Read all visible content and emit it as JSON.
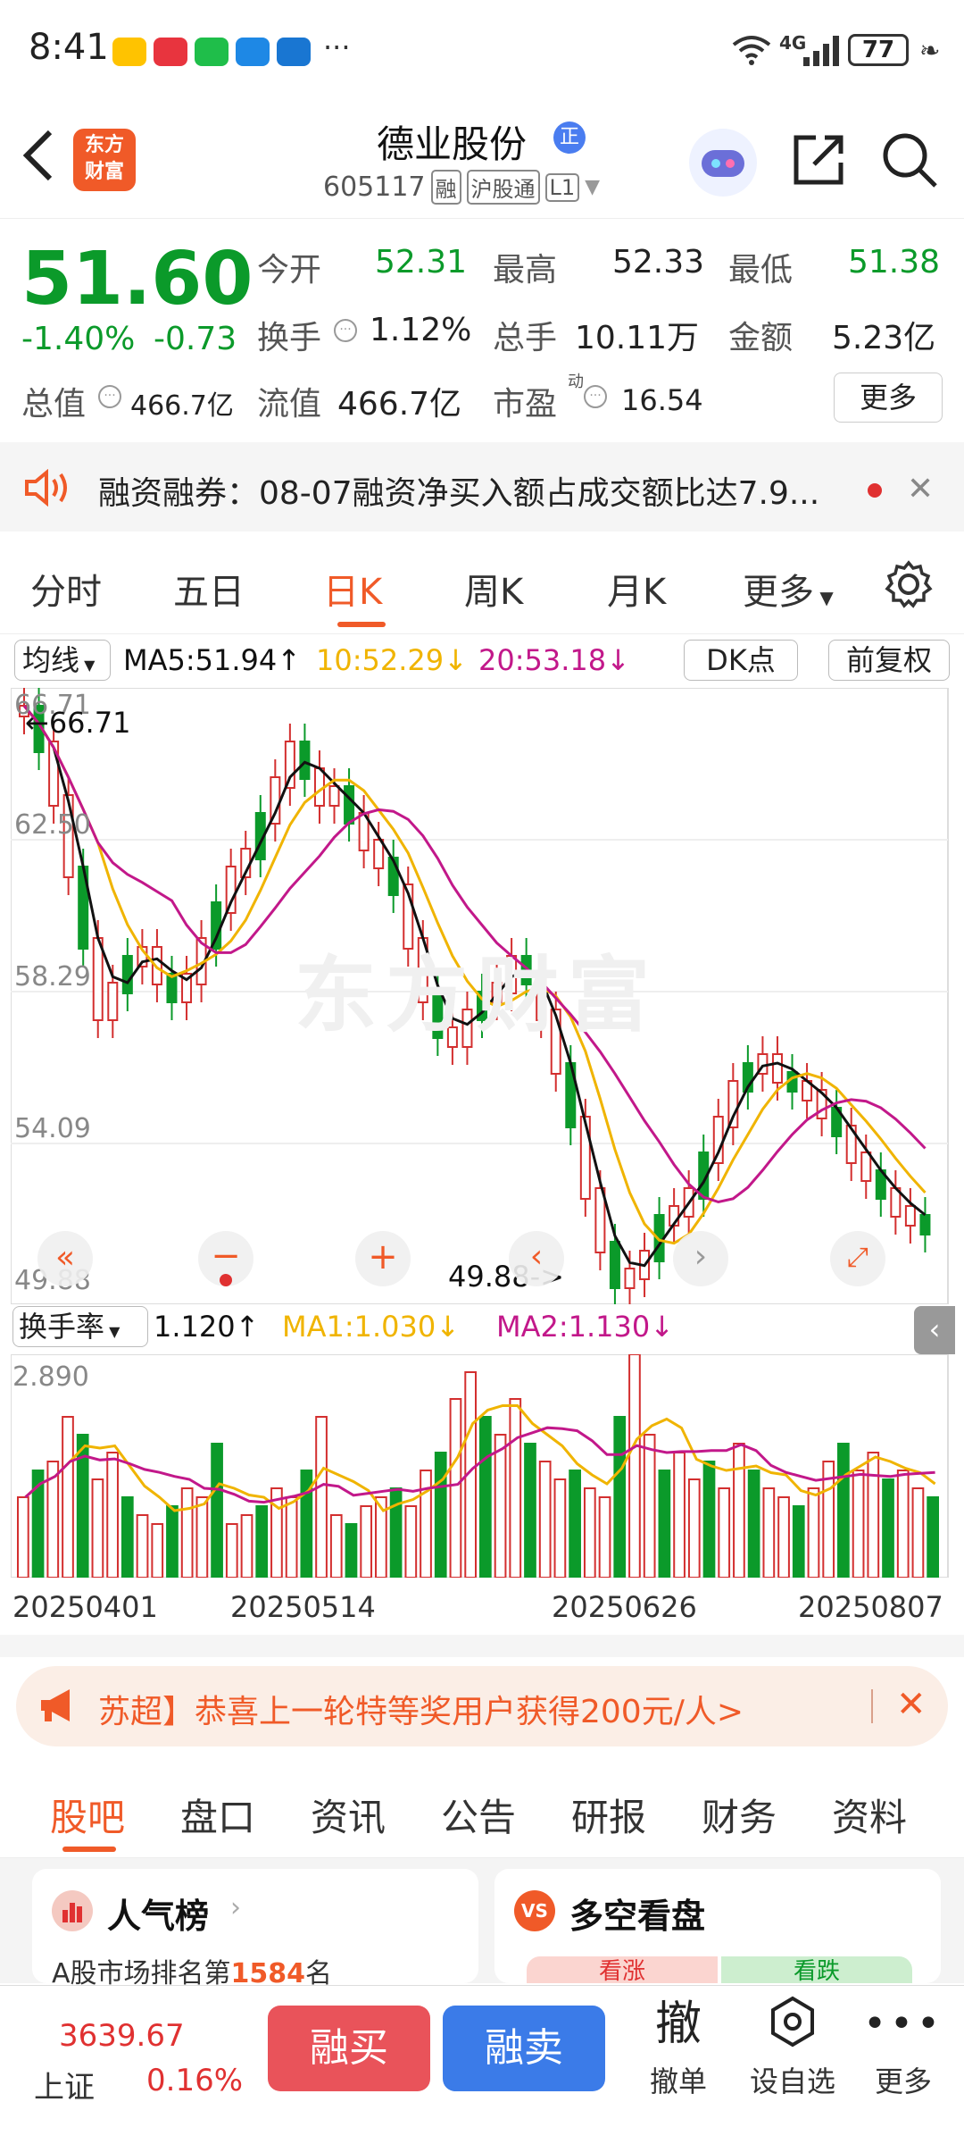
{
  "status": {
    "time": "8:41",
    "app_icons": [
      "meituan-icon",
      "huawei-icon",
      "wechat-icon",
      "cloud-icon",
      "feishu-icon"
    ],
    "more": "···",
    "network": "4G",
    "battery": "77"
  },
  "header": {
    "logo_line1": "东方",
    "logo_line2": "财富",
    "stock_name": "德业股份",
    "badge": "正",
    "stock_code": "605117",
    "tags": [
      "融",
      "沪股通",
      "L1"
    ]
  },
  "quote": {
    "price": "51.60",
    "change_pct": "-1.40%",
    "change_amt": "-0.73",
    "open_label": "今开",
    "open_value": "52.31",
    "high_label": "最高",
    "high_value": "52.33",
    "low_label": "最低",
    "low_value": "51.38",
    "turnover_label": "换手",
    "turnover_value": "1.12%",
    "volume_label": "总手",
    "volume_value": "10.11万",
    "amount_label": "金额",
    "amount_value": "5.23亿",
    "mktcap_label": "总值",
    "mktcap_value": "466.7亿",
    "float_label": "流值",
    "float_value": "466.7亿",
    "pe_label": "市盈",
    "pe_sup": "动",
    "pe_value": "16.54",
    "more_button": "更多"
  },
  "notice": {
    "text": "融资融券：08-07融资净买入额占成交额比达7.9..."
  },
  "tabs": [
    "分时",
    "五日",
    "日K",
    "周K",
    "月K",
    "更多"
  ],
  "active_tab": 2,
  "kline": {
    "ma_selector": "均线",
    "ma5": "MA5:51.94↑",
    "ma10": "10:52.29↓",
    "ma20": "20:53.18↓",
    "dk_button": "DK点",
    "fq_button": "前复权",
    "price_labels": [
      "66.71",
      "62.50",
      "58.29",
      "54.09",
      "49.88"
    ],
    "max_marker": "←66.71",
    "min_marker": "49.88->",
    "turn_selector": "换手率",
    "turn_value": "1.120↑",
    "turn_ma1": "MA1:1.030↓",
    "turn_ma2": "MA2:1.130↓",
    "turn_max": "2.890",
    "dates": [
      "20250401",
      "20250514",
      "20250626",
      "20250807"
    ],
    "watermark": "东方财富",
    "colors": {
      "ma5": "#111111",
      "ma10": "#f0b400",
      "ma20": "#c2188a",
      "up": "#d32f2f",
      "down": "#0b9a2a"
    }
  },
  "promo": {
    "text": "苏超】恭喜上一轮特等奖用户获得200元/人>"
  },
  "subtabs": [
    "股吧",
    "盘口",
    "资讯",
    "公告",
    "研报",
    "财务",
    "资料"
  ],
  "active_subtab": 0,
  "cards": {
    "left_title": "人气榜",
    "left_text_prefix": "A股市场排名第",
    "left_rank": "1584",
    "left_text_suffix": "名",
    "right_title": "多空看盘",
    "right_up": "看涨",
    "right_down": "看跌"
  },
  "bottom": {
    "index_value": "3639.67",
    "index_name": "上证",
    "index_change": "0.16%",
    "buy": "融买",
    "sell": "融卖",
    "cancel_char": "撤",
    "cancel_label": "撤单",
    "watch_label": "设自选",
    "more_label": "更多"
  }
}
